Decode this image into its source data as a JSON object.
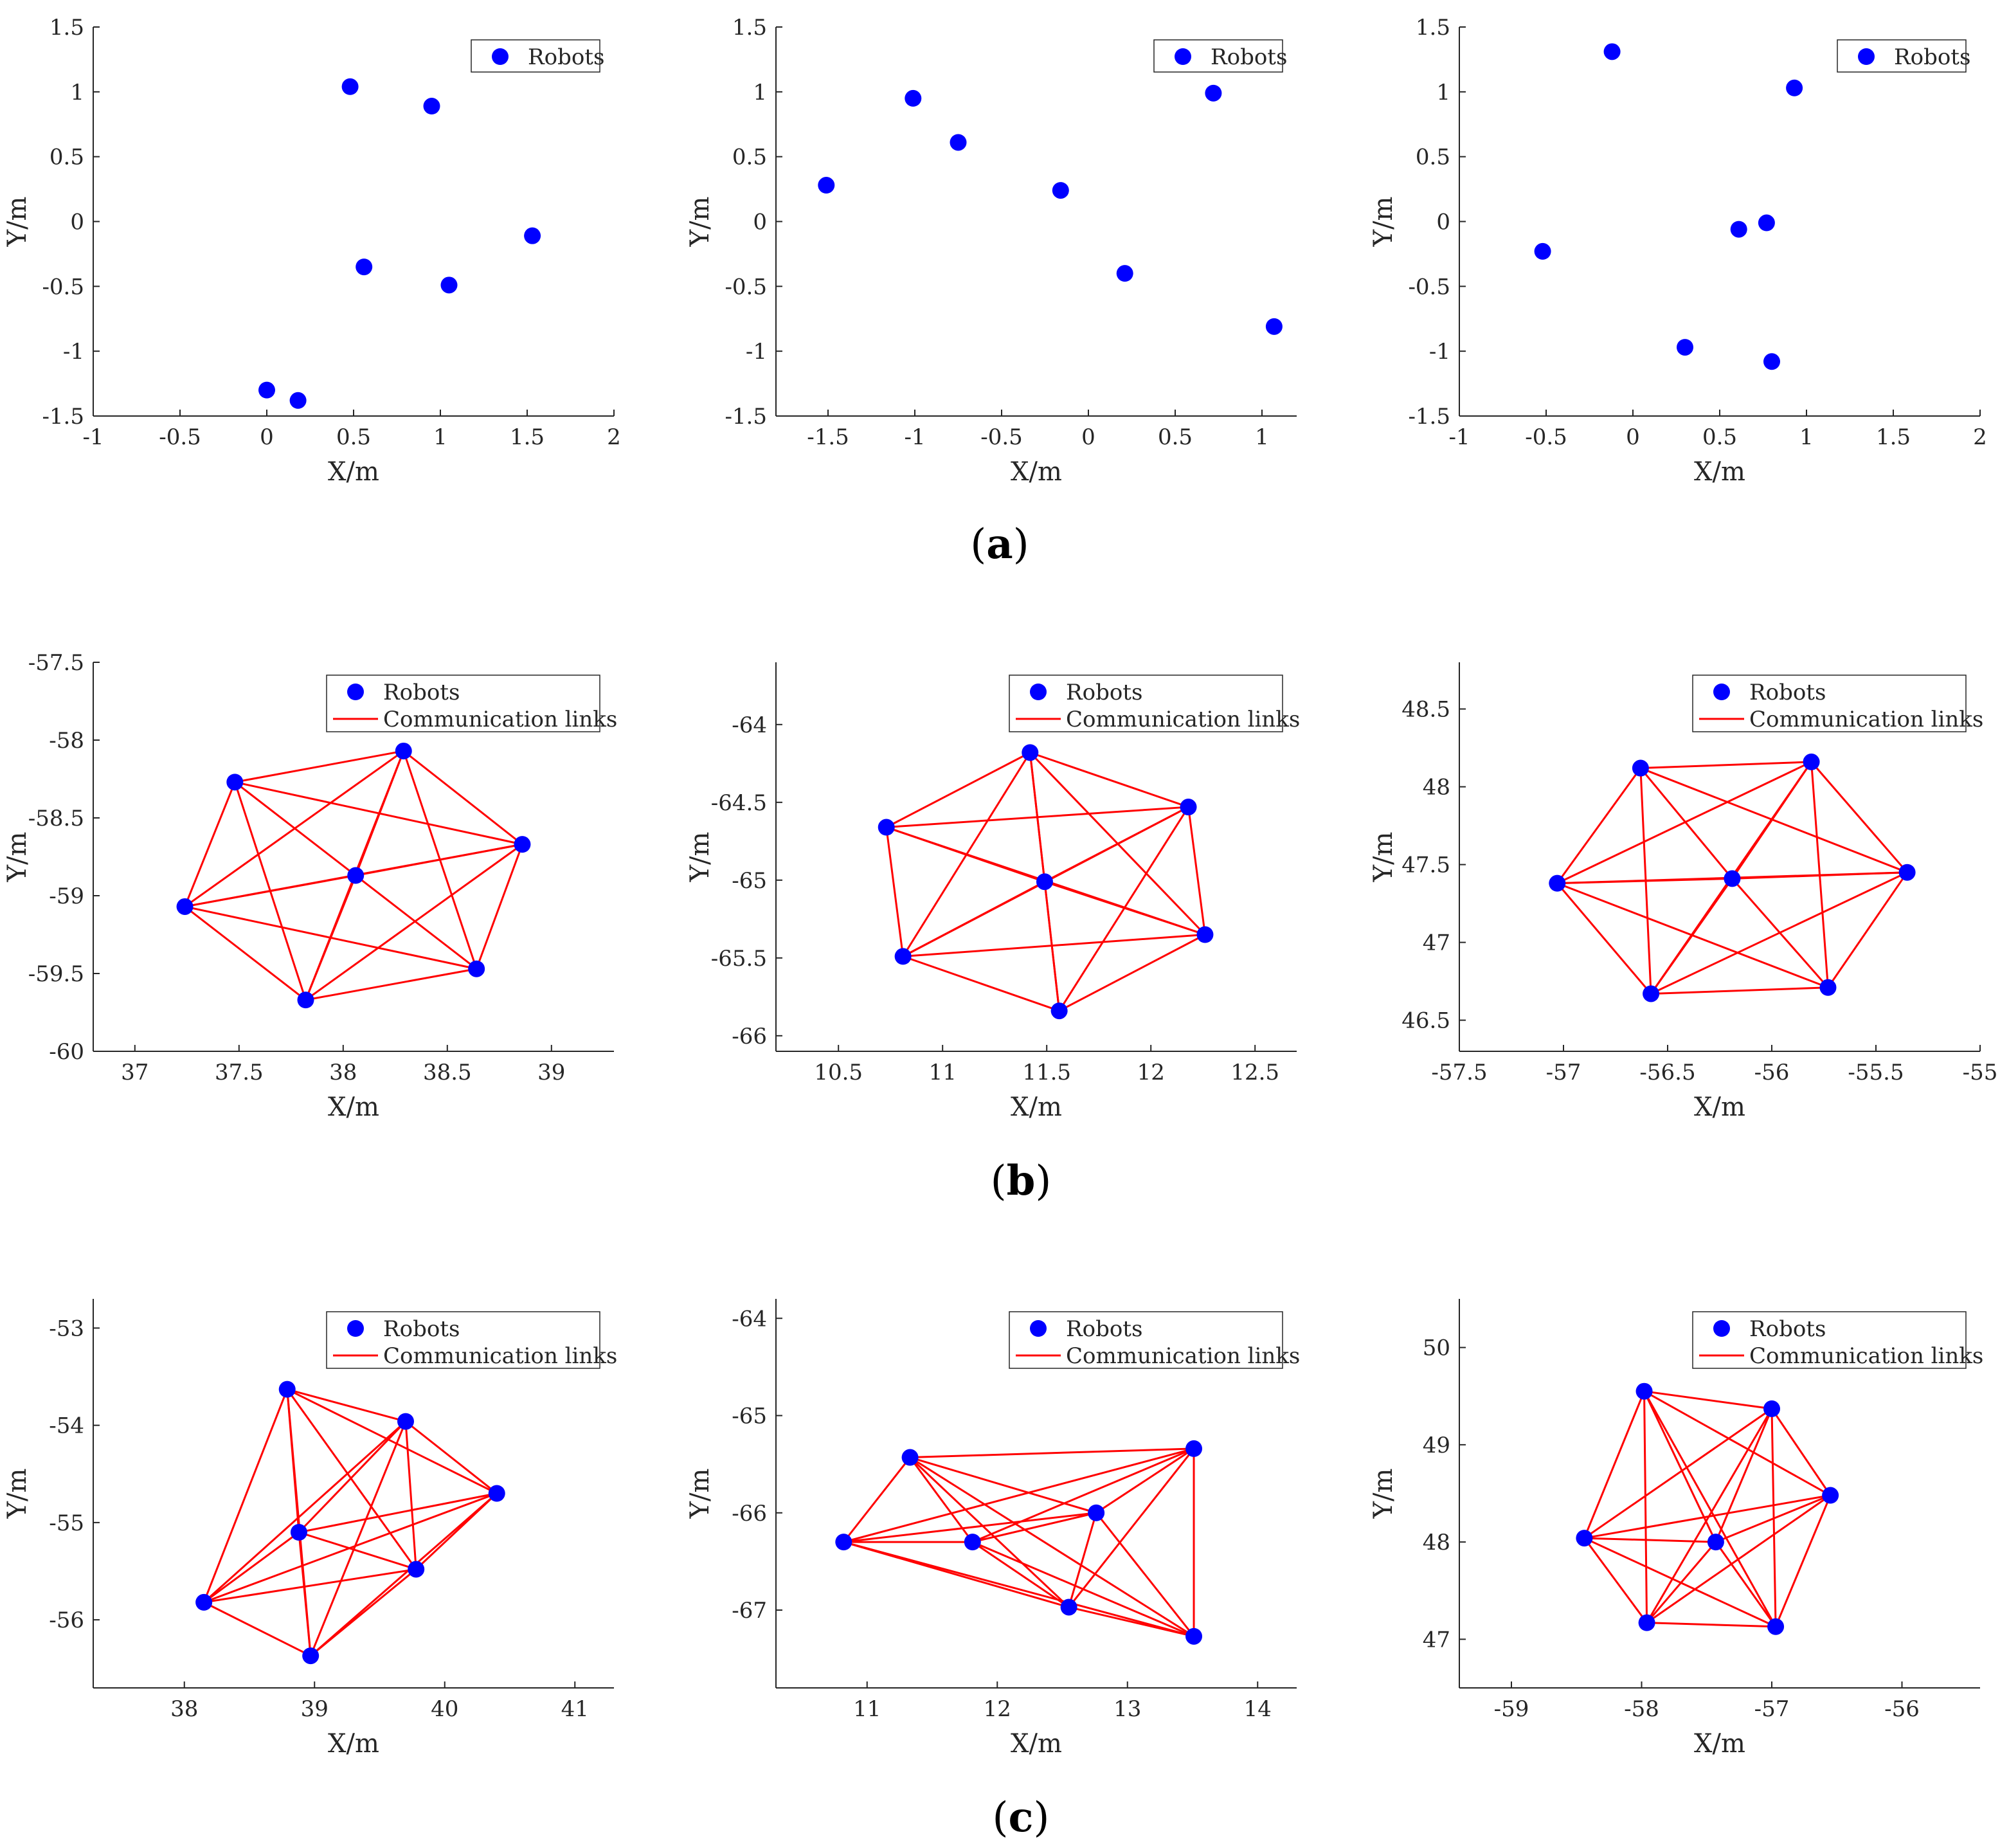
{
  "colors": {
    "robot": "#0000ff",
    "link": "#ff0000",
    "axis": "#262626"
  },
  "figure": {
    "row_labels": [
      "(a)",
      "(b)",
      "(c)"
    ]
  },
  "chart_data": [
    {
      "type": "scatter",
      "xlabel": "X/m",
      "ylabel": "Y/m",
      "xlim": [
        -1,
        2
      ],
      "ylim": [
        -1.5,
        1.5
      ],
      "xticks": [
        -1,
        -0.5,
        0,
        0.5,
        1,
        1.5,
        2
      ],
      "yticks": [
        -1.5,
        -1,
        -0.5,
        0,
        0.5,
        1,
        1.5
      ],
      "legend": {
        "placement": "top-right",
        "entries": [
          "Robots"
        ]
      },
      "grid": false,
      "series": [
        {
          "name": "Robots",
          "points": [
            [
              0.48,
              1.04
            ],
            [
              0.95,
              0.89
            ],
            [
              1.53,
              -0.11
            ],
            [
              0.56,
              -0.35
            ],
            [
              1.05,
              -0.49
            ],
            [
              0.0,
              -1.3
            ],
            [
              0.18,
              -1.38
            ]
          ]
        }
      ]
    },
    {
      "type": "scatter",
      "xlabel": "X/m",
      "ylabel": "Y/m",
      "xlim": [
        -1.8,
        1.2
      ],
      "ylim": [
        -1.5,
        1.5
      ],
      "xticks": [
        -1.5,
        -1,
        -0.5,
        0,
        0.5,
        1
      ],
      "yticks": [
        -1.5,
        -1,
        -0.5,
        0,
        0.5,
        1,
        1.5
      ],
      "legend": {
        "placement": "top-right",
        "entries": [
          "Robots"
        ]
      },
      "grid": false,
      "series": [
        {
          "name": "Robots",
          "points": [
            [
              -1.51,
              0.28
            ],
            [
              -1.01,
              0.95
            ],
            [
              -0.75,
              0.61
            ],
            [
              -0.16,
              0.24
            ],
            [
              0.21,
              -0.4
            ],
            [
              0.72,
              0.99
            ],
            [
              1.07,
              -0.81
            ]
          ]
        }
      ]
    },
    {
      "type": "scatter",
      "xlabel": "X/m",
      "ylabel": "Y/m",
      "xlim": [
        -1,
        2
      ],
      "ylim": [
        -1.5,
        1.5
      ],
      "xticks": [
        -1,
        -0.5,
        0,
        0.5,
        1,
        1.5,
        2
      ],
      "yticks": [
        -1.5,
        -1,
        -0.5,
        0,
        0.5,
        1,
        1.5
      ],
      "legend": {
        "placement": "top-right",
        "entries": [
          "Robots"
        ]
      },
      "grid": false,
      "series": [
        {
          "name": "Robots",
          "points": [
            [
              -0.12,
              1.31
            ],
            [
              0.93,
              1.03
            ],
            [
              -0.52,
              -0.23
            ],
            [
              0.61,
              -0.06
            ],
            [
              0.77,
              -0.01
            ],
            [
              0.3,
              -0.97
            ],
            [
              0.8,
              -1.08
            ]
          ]
        }
      ]
    },
    {
      "type": "scatter",
      "xlabel": "X/m",
      "ylabel": "Y/m",
      "xlim": [
        36.8,
        39.3
      ],
      "ylim": [
        -60,
        -57.5
      ],
      "xticks": [
        37,
        37.5,
        38,
        38.5,
        39
      ],
      "yticks": [
        -60,
        -59.5,
        -59,
        -58.5,
        -58,
        -57.5
      ],
      "legend": {
        "placement": "top-right",
        "entries": [
          "Robots",
          "Communication links"
        ]
      },
      "grid": false,
      "series": [
        {
          "name": "Robots",
          "points": [
            [
              37.48,
              -58.27
            ],
            [
              38.29,
              -58.07
            ],
            [
              38.86,
              -58.67
            ],
            [
              38.06,
              -58.87
            ],
            [
              37.24,
              -59.07
            ],
            [
              38.64,
              -59.47
            ],
            [
              37.82,
              -59.67
            ]
          ]
        },
        {
          "name": "Communication links",
          "links": [
            [
              0,
              1
            ],
            [
              0,
              2
            ],
            [
              0,
              3
            ],
            [
              0,
              4
            ],
            [
              0,
              6
            ],
            [
              1,
              2
            ],
            [
              1,
              3
            ],
            [
              1,
              4
            ],
            [
              1,
              6
            ],
            [
              2,
              3
            ],
            [
              2,
              5
            ],
            [
              2,
              6
            ],
            [
              3,
              4
            ],
            [
              3,
              5
            ],
            [
              3,
              6
            ],
            [
              4,
              5
            ],
            [
              4,
              6
            ],
            [
              5,
              6
            ],
            [
              1,
              5
            ],
            [
              2,
              4
            ]
          ]
        }
      ]
    },
    {
      "type": "scatter",
      "xlabel": "X/m",
      "ylabel": "Y/m",
      "xlim": [
        10.2,
        12.7
      ],
      "ylim": [
        -66.1,
        -63.6
      ],
      "xticks": [
        10.5,
        11,
        11.5,
        12,
        12.5
      ],
      "yticks": [
        -66,
        -65.5,
        -65,
        -64.5,
        -64
      ],
      "legend": {
        "placement": "top-right",
        "entries": [
          "Robots",
          "Communication links"
        ]
      },
      "grid": false,
      "series": [
        {
          "name": "Robots",
          "points": [
            [
              11.42,
              -64.18
            ],
            [
              12.18,
              -64.53
            ],
            [
              10.73,
              -64.66
            ],
            [
              11.49,
              -65.01
            ],
            [
              12.26,
              -65.35
            ],
            [
              10.81,
              -65.49
            ],
            [
              11.56,
              -65.84
            ]
          ]
        },
        {
          "name": "Communication links",
          "links": [
            [
              0,
              1
            ],
            [
              0,
              2
            ],
            [
              0,
              3
            ],
            [
              0,
              5
            ],
            [
              0,
              6
            ],
            [
              1,
              2
            ],
            [
              1,
              4
            ],
            [
              1,
              5
            ],
            [
              1,
              6
            ],
            [
              2,
              3
            ],
            [
              2,
              4
            ],
            [
              2,
              5
            ],
            [
              3,
              4
            ],
            [
              3,
              5
            ],
            [
              3,
              6
            ],
            [
              4,
              5
            ],
            [
              4,
              6
            ],
            [
              5,
              6
            ],
            [
              1,
              3
            ],
            [
              0,
              4
            ]
          ]
        }
      ]
    },
    {
      "type": "scatter",
      "xlabel": "X/m",
      "ylabel": "Y/m",
      "xlim": [
        -57.5,
        -55
      ],
      "ylim": [
        46.3,
        48.8
      ],
      "xticks": [
        -57.5,
        -57,
        -56.5,
        -56,
        -55.5,
        -55
      ],
      "yticks": [
        46.5,
        47,
        47.5,
        48,
        48.5
      ],
      "legend": {
        "placement": "top-right",
        "entries": [
          "Robots",
          "Communication links"
        ]
      },
      "grid": false,
      "series": [
        {
          "name": "Robots",
          "points": [
            [
              -56.63,
              48.12
            ],
            [
              -55.81,
              48.16
            ],
            [
              -57.03,
              47.38
            ],
            [
              -56.19,
              47.41
            ],
            [
              -55.35,
              47.45
            ],
            [
              -56.58,
              46.67
            ],
            [
              -55.73,
              46.71
            ]
          ]
        },
        {
          "name": "Communication links",
          "links": [
            [
              0,
              1
            ],
            [
              0,
              2
            ],
            [
              0,
              3
            ],
            [
              0,
              4
            ],
            [
              0,
              5
            ],
            [
              1,
              2
            ],
            [
              1,
              3
            ],
            [
              1,
              4
            ],
            [
              1,
              6
            ],
            [
              2,
              3
            ],
            [
              2,
              5
            ],
            [
              2,
              6
            ],
            [
              3,
              4
            ],
            [
              3,
              5
            ],
            [
              3,
              6
            ],
            [
              4,
              5
            ],
            [
              4,
              6
            ],
            [
              5,
              6
            ],
            [
              1,
              5
            ],
            [
              2,
              4
            ]
          ]
        }
      ]
    },
    {
      "type": "scatter",
      "xlabel": "X/m",
      "ylabel": "Y/m",
      "xlim": [
        37.3,
        41.3
      ],
      "ylim": [
        -56.7,
        -52.7
      ],
      "xticks": [
        38,
        39,
        40,
        41
      ],
      "yticks": [
        -56,
        -55,
        -54,
        -53
      ],
      "legend": {
        "placement": "top-right",
        "entries": [
          "Robots",
          "Communication links"
        ]
      },
      "grid": false,
      "series": [
        {
          "name": "Robots",
          "points": [
            [
              38.79,
              -53.63
            ],
            [
              39.7,
              -53.96
            ],
            [
              40.4,
              -54.7
            ],
            [
              38.88,
              -55.1
            ],
            [
              39.78,
              -55.48
            ],
            [
              38.15,
              -55.82
            ],
            [
              38.97,
              -56.37
            ]
          ]
        },
        {
          "name": "Communication links",
          "links": [
            [
              0,
              1
            ],
            [
              0,
              2
            ],
            [
              0,
              3
            ],
            [
              0,
              4
            ],
            [
              0,
              5
            ],
            [
              0,
              6
            ],
            [
              1,
              2
            ],
            [
              1,
              3
            ],
            [
              1,
              4
            ],
            [
              1,
              5
            ],
            [
              1,
              6
            ],
            [
              2,
              3
            ],
            [
              2,
              4
            ],
            [
              2,
              5
            ],
            [
              2,
              6
            ],
            [
              3,
              4
            ],
            [
              3,
              5
            ],
            [
              3,
              6
            ],
            [
              4,
              5
            ],
            [
              4,
              6
            ],
            [
              5,
              6
            ]
          ]
        }
      ]
    },
    {
      "type": "scatter",
      "xlabel": "X/m",
      "ylabel": "Y/m",
      "xlim": [
        10.3,
        14.3
      ],
      "ylim": [
        -67.8,
        -63.8
      ],
      "xticks": [
        11,
        12,
        13,
        14
      ],
      "yticks": [
        -67,
        -66,
        -65,
        -64
      ],
      "legend": {
        "placement": "top-right",
        "entries": [
          "Robots",
          "Communication links"
        ]
      },
      "grid": false,
      "series": [
        {
          "name": "Robots",
          "points": [
            [
              11.33,
              -65.43
            ],
            [
              13.51,
              -65.34
            ],
            [
              12.76,
              -66.0
            ],
            [
              10.82,
              -66.3
            ],
            [
              11.81,
              -66.3
            ],
            [
              12.55,
              -66.97
            ],
            [
              13.51,
              -67.27
            ]
          ]
        },
        {
          "name": "Communication links",
          "links": [
            [
              0,
              1
            ],
            [
              0,
              2
            ],
            [
              0,
              3
            ],
            [
              0,
              4
            ],
            [
              0,
              5
            ],
            [
              0,
              6
            ],
            [
              1,
              2
            ],
            [
              1,
              3
            ],
            [
              1,
              4
            ],
            [
              1,
              5
            ],
            [
              1,
              6
            ],
            [
              2,
              3
            ],
            [
              2,
              4
            ],
            [
              2,
              5
            ],
            [
              2,
              6
            ],
            [
              3,
              4
            ],
            [
              3,
              5
            ],
            [
              3,
              6
            ],
            [
              4,
              5
            ],
            [
              4,
              6
            ],
            [
              5,
              6
            ]
          ]
        }
      ]
    },
    {
      "type": "scatter",
      "xlabel": "X/m",
      "ylabel": "Y/m",
      "xlim": [
        -59.4,
        -55.4
      ],
      "ylim": [
        46.5,
        50.5
      ],
      "xticks": [
        -59,
        -58,
        -57,
        -56
      ],
      "yticks": [
        47,
        48,
        49,
        50
      ],
      "legend": {
        "placement": "top-right",
        "entries": [
          "Robots",
          "Communication links"
        ]
      },
      "grid": false,
      "series": [
        {
          "name": "Robots",
          "points": [
            [
              -57.98,
              49.55
            ],
            [
              -57.0,
              49.37
            ],
            [
              -56.55,
              48.48
            ],
            [
              -58.44,
              48.04
            ],
            [
              -57.43,
              48.0
            ],
            [
              -57.96,
              47.17
            ],
            [
              -56.97,
              47.13
            ]
          ]
        },
        {
          "name": "Communication links",
          "links": [
            [
              0,
              1
            ],
            [
              0,
              2
            ],
            [
              0,
              3
            ],
            [
              0,
              4
            ],
            [
              0,
              5
            ],
            [
              0,
              6
            ],
            [
              1,
              2
            ],
            [
              1,
              3
            ],
            [
              1,
              4
            ],
            [
              1,
              5
            ],
            [
              1,
              6
            ],
            [
              2,
              3
            ],
            [
              2,
              4
            ],
            [
              2,
              5
            ],
            [
              2,
              6
            ],
            [
              3,
              4
            ],
            [
              3,
              5
            ],
            [
              3,
              6
            ],
            [
              4,
              5
            ],
            [
              4,
              6
            ],
            [
              5,
              6
            ]
          ]
        }
      ]
    }
  ]
}
